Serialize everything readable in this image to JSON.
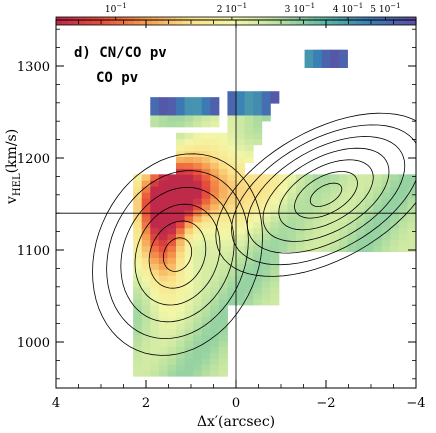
{
  "chart_data": {
    "type": "heatmap",
    "panel_title": "d) CN/CO pv",
    "panel_subtitle": "CO pv",
    "xlabel": "Δx′(arcsec)",
    "ylabel": "v_HEL(km/s)",
    "ylabel_main": "v",
    "ylabel_sub": "HEL",
    "ylabel_unit": "(km/s)",
    "xlim": [
      4,
      -4
    ],
    "ylim": [
      950,
      1350
    ],
    "x_ticks": [
      4,
      2,
      0,
      -2,
      -4
    ],
    "x_tick_labels": [
      "4",
      "2",
      "0",
      "−2",
      "−4"
    ],
    "y_ticks": [
      1000,
      1100,
      1200,
      1300
    ],
    "y_tick_labels": [
      "1000",
      "1100",
      "1200",
      "1300"
    ],
    "reference_lines": {
      "x": 0,
      "v": 1140
    },
    "colorbar": {
      "placement": "top",
      "scale": "log",
      "range": [
        0.07,
        0.6
      ],
      "tick_labels": [
        {
          "value": 0.1,
          "mantissa": "",
          "exp": "−1"
        },
        {
          "value": 0.2,
          "mantissa": "2",
          "exp": "−1"
        },
        {
          "value": 0.3,
          "mantissa": "3",
          "exp": "−1"
        },
        {
          "value": 0.4,
          "mantissa": "4",
          "exp": "−1"
        },
        {
          "value": 0.5,
          "mantissa": "5",
          "exp": "−1"
        }
      ],
      "colors": [
        "#c02a4a",
        "#e8503a",
        "#f6a050",
        "#fbe28a",
        "#f2f7a8",
        "#b6e0a0",
        "#5ab8a6",
        "#3a7eb6",
        "#5b4fa6"
      ]
    },
    "contour_centers": [
      {
        "x": -2.0,
        "v": 1160
      },
      {
        "x": 1.3,
        "v": 1095
      }
    ]
  }
}
